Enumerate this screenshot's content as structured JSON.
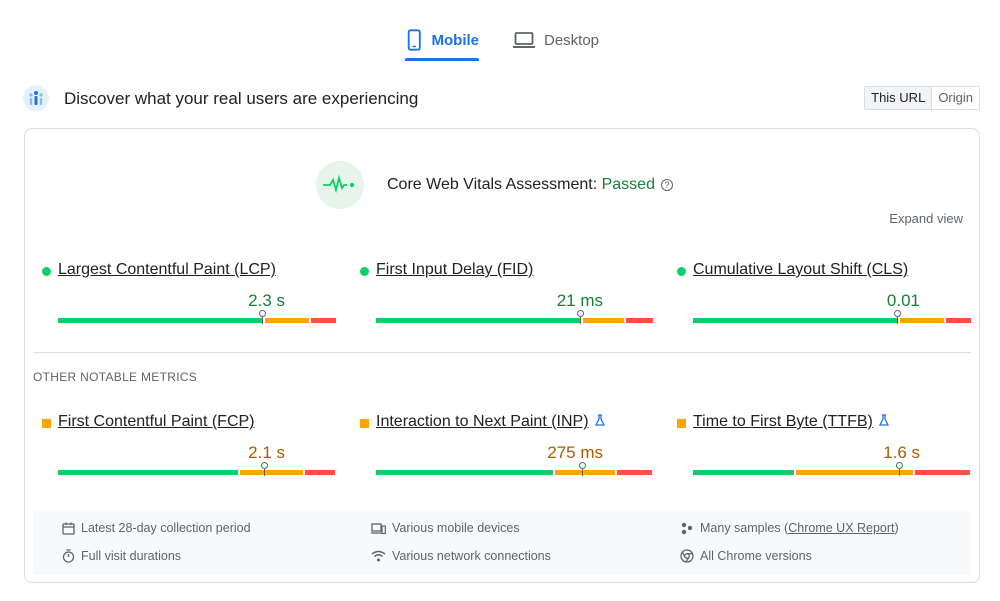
{
  "tabs": [
    {
      "label": "Mobile",
      "active": true,
      "icon": "smartphone-icon"
    },
    {
      "label": "Desktop",
      "active": false,
      "icon": "laptop-icon"
    }
  ],
  "header": {
    "title": "Discover what your real users are experiencing",
    "toggle": {
      "options": [
        "This URL",
        "Origin"
      ],
      "selected": "This URL"
    }
  },
  "assessment": {
    "label": "Core Web Vitals Assessment: ",
    "status": "Passed",
    "help_icon": "?",
    "expand_label": "Expand view"
  },
  "colors": {
    "good": "#0cce6b",
    "needs_improvement": "#ffa400",
    "poor": "#ff4e42",
    "good_text": "#188038",
    "ni_text": "#b05a00"
  },
  "core_metrics": [
    {
      "name": "Largest Contentful Paint (LCP)",
      "value": "2.3 s",
      "status": "good",
      "distribution": [
        0.75,
        0.16,
        0.09
      ]
    },
    {
      "name": "First Input Delay (FID)",
      "value": "21 ms",
      "status": "good",
      "distribution": [
        0.75,
        0.15,
        0.1
      ]
    },
    {
      "name": "Cumulative Layout Shift (CLS)",
      "value": "0.01",
      "status": "good",
      "distribution": [
        0.75,
        0.16,
        0.09
      ]
    }
  ],
  "other_label": "OTHER NOTABLE METRICS",
  "other_metrics": [
    {
      "name": "First Contentful Paint (FCP)",
      "value": "2.1 s",
      "status": "needs_improvement",
      "experimental": false,
      "distribution": [
        0.66,
        0.23,
        0.11
      ]
    },
    {
      "name": "Interaction to Next Paint (INP)",
      "value": "275 ms",
      "status": "needs_improvement",
      "experimental": true,
      "distribution": [
        0.65,
        0.22,
        0.13
      ]
    },
    {
      "name": "Time to First Byte (TTFB)",
      "value": "1.6 s",
      "status": "needs_improvement",
      "experimental": true,
      "distribution": [
        0.37,
        0.43,
        0.2
      ]
    }
  ],
  "footer": {
    "items": [
      {
        "icon": "calendar-icon",
        "text": "Latest 28-day collection period"
      },
      {
        "icon": "devices-icon",
        "text": "Various mobile devices"
      },
      {
        "icon": "people-icon",
        "text": "Many samples (",
        "link": "Chrome UX Report",
        "suffix": ")"
      },
      {
        "icon": "timer-icon",
        "text": "Full visit durations"
      },
      {
        "icon": "signal-icon",
        "text": "Various network connections"
      },
      {
        "icon": "chrome-icon",
        "text": "All Chrome versions"
      }
    ]
  }
}
